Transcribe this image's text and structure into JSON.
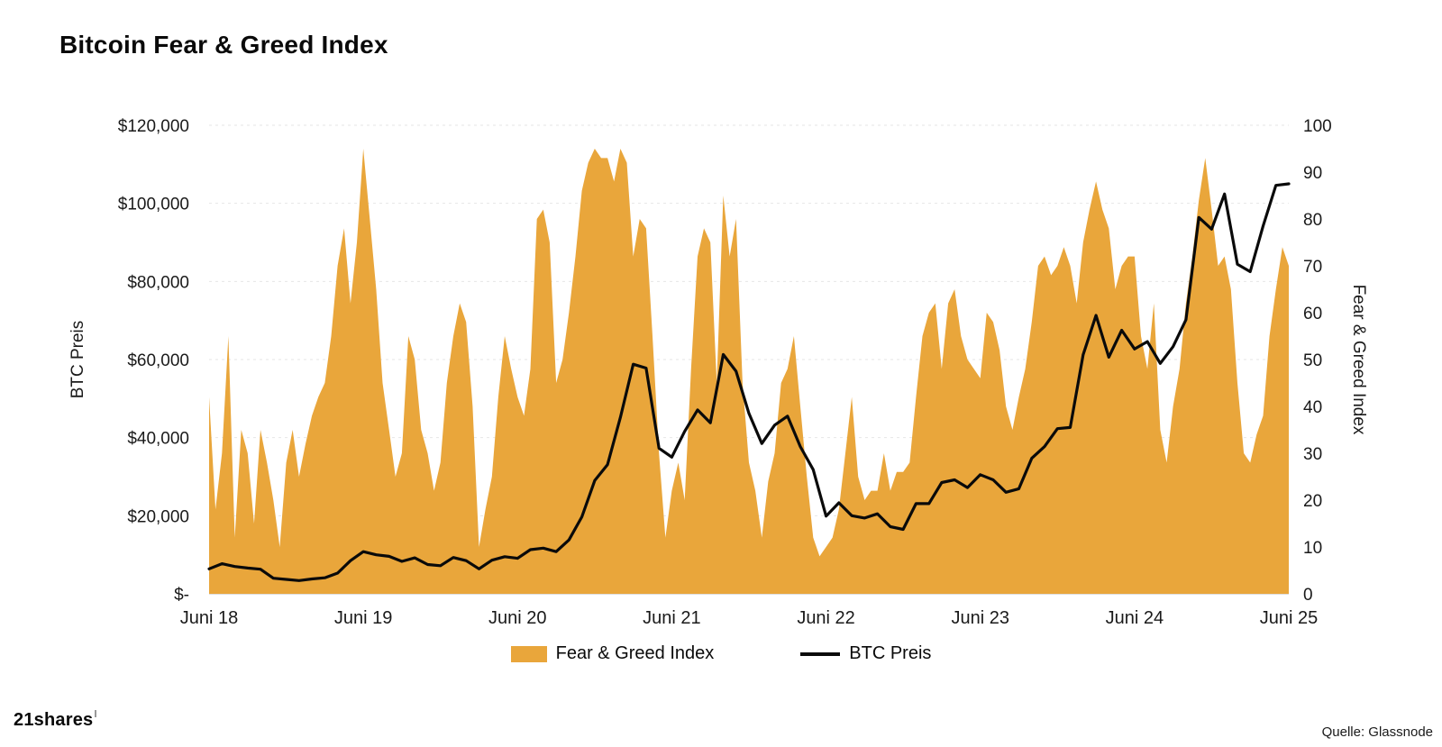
{
  "title": "Bitcoin Fear & Greed Index",
  "footer": {
    "brand": "21shares",
    "source": "Quelle: Glassnode"
  },
  "legend": [
    {
      "label": "Fear & Greed Index",
      "type": "area",
      "color": "#E9A63B"
    },
    {
      "label": "BTC Preis",
      "type": "line",
      "color": "#0a0a0a"
    }
  ],
  "chart_data": {
    "type": "combo",
    "title": "Bitcoin Fear & Greed Index",
    "x_range_months": 84,
    "x_axis": {
      "ticks": [
        "Juni 18",
        "Juni 19",
        "Juni 20",
        "Juni 21",
        "Juni 22",
        "Juni 23",
        "Juni 24",
        "Juni 25"
      ]
    },
    "left_axis": {
      "label": "BTC Preis",
      "min": 0,
      "max": 120000,
      "ticks": [
        "$-",
        "$20,000",
        "$40,000",
        "$60,000",
        "$80,000",
        "$100,000",
        "$120,000"
      ]
    },
    "right_axis": {
      "label": "Fear & Greed Index",
      "min": 0,
      "max": 100,
      "ticks": [
        "0",
        "10",
        "20",
        "30",
        "40",
        "50",
        "60",
        "70",
        "80",
        "90",
        "100"
      ]
    },
    "grid": "dashed-horizontal",
    "legend_position": "bottom-center",
    "series": [
      {
        "name": "Fear & Greed Index",
        "type": "area",
        "axis": "right",
        "color": "#E9A63B",
        "points_per_month": 2,
        "values": [
          42,
          18,
          30,
          55,
          12,
          35,
          30,
          15,
          35,
          28,
          20,
          10,
          28,
          35,
          25,
          32,
          38,
          42,
          45,
          55,
          70,
          78,
          62,
          75,
          95,
          80,
          65,
          45,
          35,
          25,
          30,
          55,
          50,
          35,
          30,
          22,
          28,
          45,
          55,
          62,
          58,
          40,
          10,
          18,
          25,
          42,
          55,
          48,
          42,
          38,
          48,
          80,
          82,
          75,
          45,
          50,
          60,
          72,
          86,
          92,
          95,
          93,
          93,
          88,
          95,
          92,
          72,
          80,
          78,
          55,
          30,
          12,
          22,
          28,
          20,
          48,
          72,
          78,
          75,
          45,
          85,
          72,
          80,
          45,
          28,
          22,
          12,
          24,
          30,
          45,
          48,
          55,
          40,
          25,
          12,
          8,
          10,
          12,
          18,
          30,
          42,
          25,
          20,
          22,
          22,
          30,
          22,
          26,
          26,
          28,
          42,
          55,
          60,
          62,
          48,
          62,
          65,
          55,
          50,
          48,
          46,
          60,
          58,
          52,
          40,
          35,
          42,
          48,
          58,
          70,
          72,
          68,
          70,
          74,
          70,
          62,
          75,
          82,
          88,
          82,
          78,
          65,
          70,
          72,
          72,
          55,
          48,
          62,
          35,
          28,
          40,
          48,
          62,
          72,
          84,
          93,
          82,
          70,
          72,
          65,
          45,
          30,
          28,
          34,
          38,
          55,
          65,
          74,
          70
        ]
      },
      {
        "name": "BTC Preis",
        "type": "line",
        "axis": "left",
        "color": "#0a0a0a",
        "points_per_month": 1,
        "values": [
          6400,
          7700,
          7000,
          6600,
          6300,
          4000,
          3700,
          3400,
          3800,
          4100,
          5300,
          8500,
          10800,
          10000,
          9600,
          8300,
          9200,
          7500,
          7200,
          9300,
          8500,
          6400,
          8600,
          9500,
          9100,
          11300,
          11700,
          10800,
          13800,
          19700,
          29000,
          33100,
          45200,
          58800,
          57800,
          37300,
          35000,
          41600,
          47100,
          43800,
          61300,
          57000,
          46200,
          38500,
          43200,
          45500,
          37700,
          31800,
          19900,
          23300,
          20000,
          19400,
          20500,
          17200,
          16500,
          23100,
          23100,
          28500,
          29200,
          27200,
          30500,
          29200,
          26000,
          26900,
          34700,
          37700,
          42300,
          42600,
          61200,
          71300,
          60600,
          67500,
          62700,
          64600,
          59000,
          63300,
          70200,
          96400,
          93400,
          102400,
          84400,
          82500,
          94200,
          104600,
          105000
        ]
      }
    ]
  }
}
